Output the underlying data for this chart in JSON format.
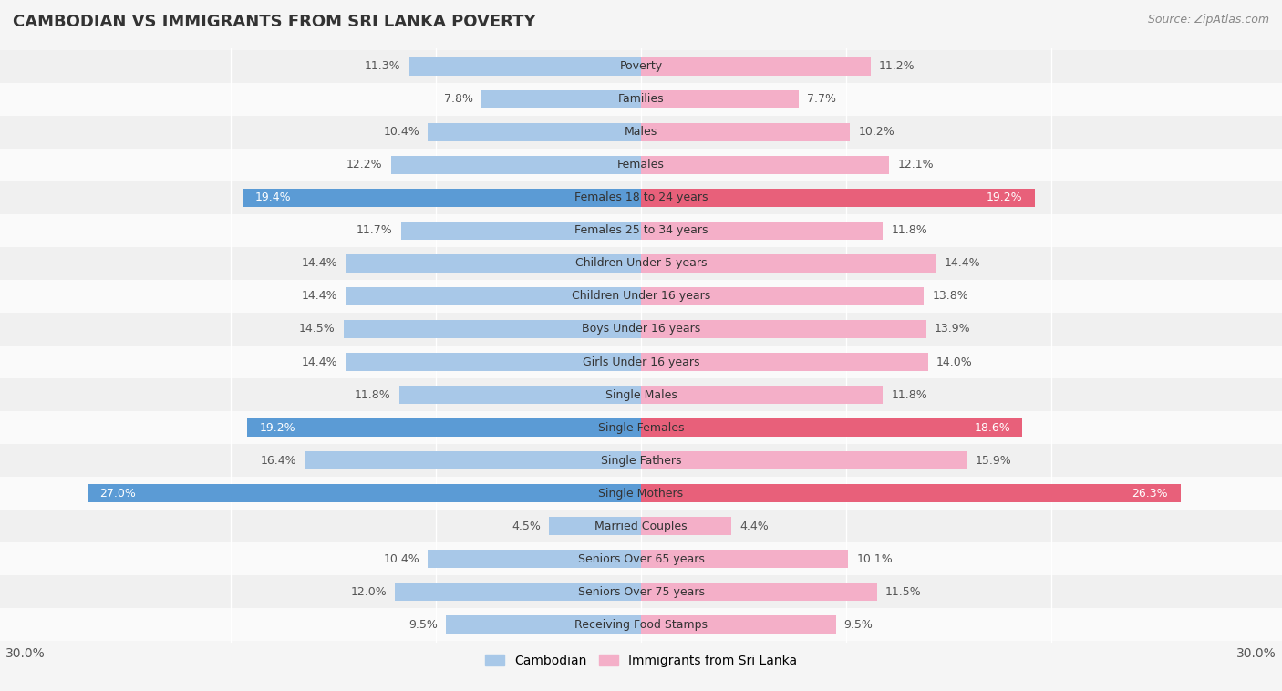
{
  "title": "CAMBODIAN VS IMMIGRANTS FROM SRI LANKA POVERTY",
  "source": "Source: ZipAtlas.com",
  "categories": [
    "Poverty",
    "Families",
    "Males",
    "Females",
    "Females 18 to 24 years",
    "Females 25 to 34 years",
    "Children Under 5 years",
    "Children Under 16 years",
    "Boys Under 16 years",
    "Girls Under 16 years",
    "Single Males",
    "Single Females",
    "Single Fathers",
    "Single Mothers",
    "Married Couples",
    "Seniors Over 65 years",
    "Seniors Over 75 years",
    "Receiving Food Stamps"
  ],
  "cambodian": [
    11.3,
    7.8,
    10.4,
    12.2,
    19.4,
    11.7,
    14.4,
    14.4,
    14.5,
    14.4,
    11.8,
    19.2,
    16.4,
    27.0,
    4.5,
    10.4,
    12.0,
    9.5
  ],
  "sri_lanka": [
    11.2,
    7.7,
    10.2,
    12.1,
    19.2,
    11.8,
    14.4,
    13.8,
    13.9,
    14.0,
    11.8,
    18.6,
    15.9,
    26.3,
    4.4,
    10.1,
    11.5,
    9.5
  ],
  "cambodian_color_normal": "#a8c8e8",
  "sri_lanka_color_normal": "#f4afc8",
  "cambodian_color_highlight": "#5b9bd5",
  "sri_lanka_color_highlight": "#e8607a",
  "highlight_rows": [
    4,
    11,
    13
  ],
  "bar_height": 0.55,
  "xlim": 30,
  "bg_odd": "#f0f0f0",
  "bg_even": "#fafafa",
  "legend_cambodian": "Cambodian",
  "legend_sri_lanka": "Immigrants from Sri Lanka",
  "label_fontsize": 9.0,
  "cat_fontsize": 9.0,
  "title_fontsize": 13,
  "source_fontsize": 9
}
